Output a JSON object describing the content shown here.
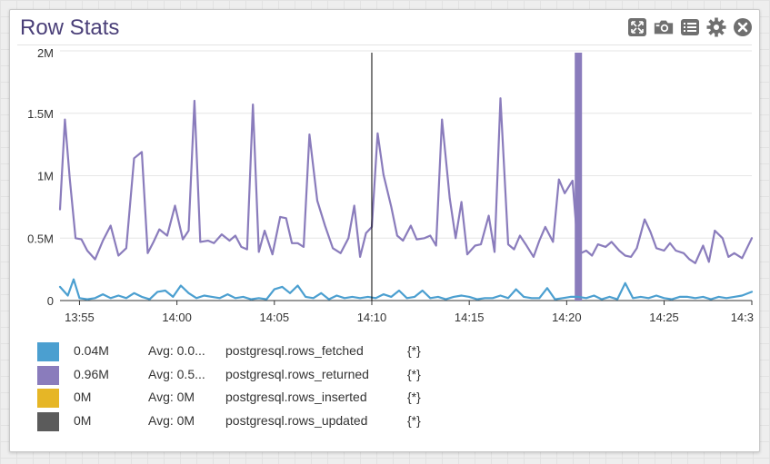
{
  "widget": {
    "title": "Row Stats",
    "toolbar": [
      {
        "name": "expand-icon"
      },
      {
        "name": "snapshot-camera-icon"
      },
      {
        "name": "list-icon"
      },
      {
        "name": "gear-icon"
      },
      {
        "name": "close-icon"
      }
    ]
  },
  "colors": {
    "title": "#4a3f78",
    "rows_fetched": "#4b9fd0",
    "rows_returned": "#8a7cbc",
    "rows_inserted": "#e6b626",
    "rows_updated": "#5b5b5b",
    "highlight_band": "#8a7cbc",
    "cursor_line": "#000000"
  },
  "chart_data": {
    "type": "line",
    "title": "Row Stats",
    "xlabel": "",
    "ylabel": "",
    "x_ticks": [
      "13:55",
      "14:00",
      "14:05",
      "14:10",
      "14:15",
      "14:20",
      "14:25",
      "14:3"
    ],
    "y_ticks": [
      "0",
      "0.5M",
      "1M",
      "1.5M",
      "2M"
    ],
    "ylim": [
      0,
      2000000
    ],
    "xlim_minutes": [
      -1.0,
      34.5
    ],
    "x_tick_minutes": [
      0,
      5,
      10,
      15,
      20,
      25,
      30,
      34.5
    ],
    "x_origin": "13:55",
    "cursor_minute": 15.0,
    "highlight_minute": 25.6,
    "grid": true,
    "legend_position": "bottom",
    "series": [
      {
        "name": "postgresql.rows_returned",
        "minutes": [
          -1.0,
          -0.75,
          -0.5,
          -0.2,
          0.1,
          0.4,
          0.8,
          1.2,
          1.6,
          2.0,
          2.4,
          2.8,
          3.2,
          3.5,
          3.8,
          4.1,
          4.5,
          4.9,
          5.3,
          5.6,
          5.9,
          6.2,
          6.6,
          6.9,
          7.3,
          7.7,
          8.0,
          8.3,
          8.6,
          8.9,
          9.2,
          9.5,
          9.9,
          10.3,
          10.6,
          10.9,
          11.2,
          11.5,
          11.8,
          12.2,
          12.6,
          13.0,
          13.4,
          13.8,
          14.1,
          14.4,
          14.7,
          15.0,
          15.3,
          15.6,
          16.0,
          16.3,
          16.6,
          17.0,
          17.3,
          17.7,
          18.0,
          18.3,
          18.6,
          19.0,
          19.3,
          19.6,
          19.9,
          20.3,
          20.6,
          21.0,
          21.3,
          21.6,
          22.0,
          22.3,
          22.6,
          22.9,
          23.3,
          23.6,
          23.9,
          24.3,
          24.6,
          24.9,
          25.3,
          25.6,
          26.0,
          26.3,
          26.6,
          27.0,
          27.3,
          27.7,
          28.0,
          28.3,
          28.6,
          29.0,
          29.3,
          29.6,
          30.0,
          30.3,
          30.6,
          31.0,
          31.3,
          31.6,
          32.0,
          32.3,
          32.6,
          33.0,
          33.3,
          33.6,
          34.0,
          34.5
        ],
        "values": [
          730000,
          1450000,
          980000,
          500000,
          490000,
          400000,
          330000,
          480000,
          600000,
          360000,
          420000,
          1140000,
          1190000,
          380000,
          470000,
          570000,
          520000,
          760000,
          490000,
          560000,
          1600000,
          470000,
          480000,
          460000,
          530000,
          480000,
          520000,
          430000,
          410000,
          1570000,
          390000,
          560000,
          370000,
          670000,
          660000,
          460000,
          460000,
          430000,
          1330000,
          800000,
          600000,
          420000,
          380000,
          500000,
          760000,
          350000,
          540000,
          590000,
          1340000,
          1010000,
          750000,
          520000,
          480000,
          600000,
          490000,
          500000,
          520000,
          440000,
          1450000,
          820000,
          500000,
          790000,
          370000,
          440000,
          450000,
          680000,
          390000,
          1620000,
          450000,
          410000,
          520000,
          450000,
          350000,
          480000,
          590000,
          470000,
          970000,
          860000,
          960000,
          370000,
          400000,
          360000,
          450000,
          430000,
          470000,
          400000,
          360000,
          350000,
          420000,
          650000,
          550000,
          420000,
          400000,
          460000,
          400000,
          380000,
          330000,
          300000,
          440000,
          310000,
          560000,
          500000,
          350000,
          380000,
          340000,
          500000
        ]
      },
      {
        "name": "postgresql.rows_fetched",
        "minutes": [
          -1.0,
          -0.6,
          -0.3,
          0.0,
          0.4,
          0.8,
          1.2,
          1.6,
          2.0,
          2.4,
          2.8,
          3.2,
          3.6,
          4.0,
          4.4,
          4.8,
          5.2,
          5.6,
          6.0,
          6.4,
          6.8,
          7.2,
          7.6,
          8.0,
          8.4,
          8.8,
          9.2,
          9.6,
          10.0,
          10.4,
          10.8,
          11.2,
          11.6,
          12.0,
          12.4,
          12.8,
          13.2,
          13.6,
          14.0,
          14.4,
          14.8,
          15.2,
          15.6,
          16.0,
          16.4,
          16.8,
          17.2,
          17.6,
          18.0,
          18.4,
          18.8,
          19.2,
          19.6,
          20.0,
          20.4,
          20.8,
          21.2,
          21.6,
          22.0,
          22.4,
          22.8,
          23.2,
          23.6,
          24.0,
          24.4,
          24.8,
          25.2,
          25.6,
          26.0,
          26.4,
          26.8,
          27.2,
          27.6,
          28.0,
          28.4,
          28.8,
          29.2,
          29.6,
          30.0,
          30.4,
          30.8,
          31.2,
          31.6,
          32.0,
          32.4,
          32.8,
          33.2,
          33.6,
          34.0,
          34.5
        ],
        "values": [
          110000,
          40000,
          170000,
          20000,
          10000,
          20000,
          50000,
          20000,
          40000,
          20000,
          60000,
          30000,
          10000,
          70000,
          80000,
          30000,
          120000,
          60000,
          20000,
          40000,
          30000,
          20000,
          50000,
          20000,
          30000,
          10000,
          20000,
          10000,
          90000,
          110000,
          60000,
          120000,
          30000,
          20000,
          60000,
          10000,
          40000,
          20000,
          30000,
          20000,
          30000,
          20000,
          50000,
          30000,
          80000,
          20000,
          30000,
          80000,
          20000,
          30000,
          10000,
          30000,
          40000,
          30000,
          10000,
          20000,
          20000,
          40000,
          20000,
          90000,
          30000,
          20000,
          20000,
          100000,
          10000,
          20000,
          30000,
          30000,
          20000,
          40000,
          10000,
          30000,
          10000,
          140000,
          20000,
          30000,
          20000,
          40000,
          20000,
          10000,
          30000,
          30000,
          20000,
          30000,
          10000,
          30000,
          20000,
          30000,
          40000,
          70000
        ]
      }
    ]
  },
  "legend": [
    {
      "color": "#4b9fd0",
      "value": "0.04M",
      "avg": "Avg: 0.0...",
      "metric": "postgresql.rows_fetched",
      "scope": "{*}"
    },
    {
      "color": "#8a7cbc",
      "value": "0.96M",
      "avg": "Avg: 0.5...",
      "metric": "postgresql.rows_returned",
      "scope": "{*}"
    },
    {
      "color": "#e6b626",
      "value": "0M",
      "avg": "Avg: 0M",
      "metric": "postgresql.rows_inserted",
      "scope": "{*}"
    },
    {
      "color": "#5b5b5b",
      "value": "0M",
      "avg": "Avg: 0M",
      "metric": "postgresql.rows_updated",
      "scope": "{*}"
    }
  ]
}
